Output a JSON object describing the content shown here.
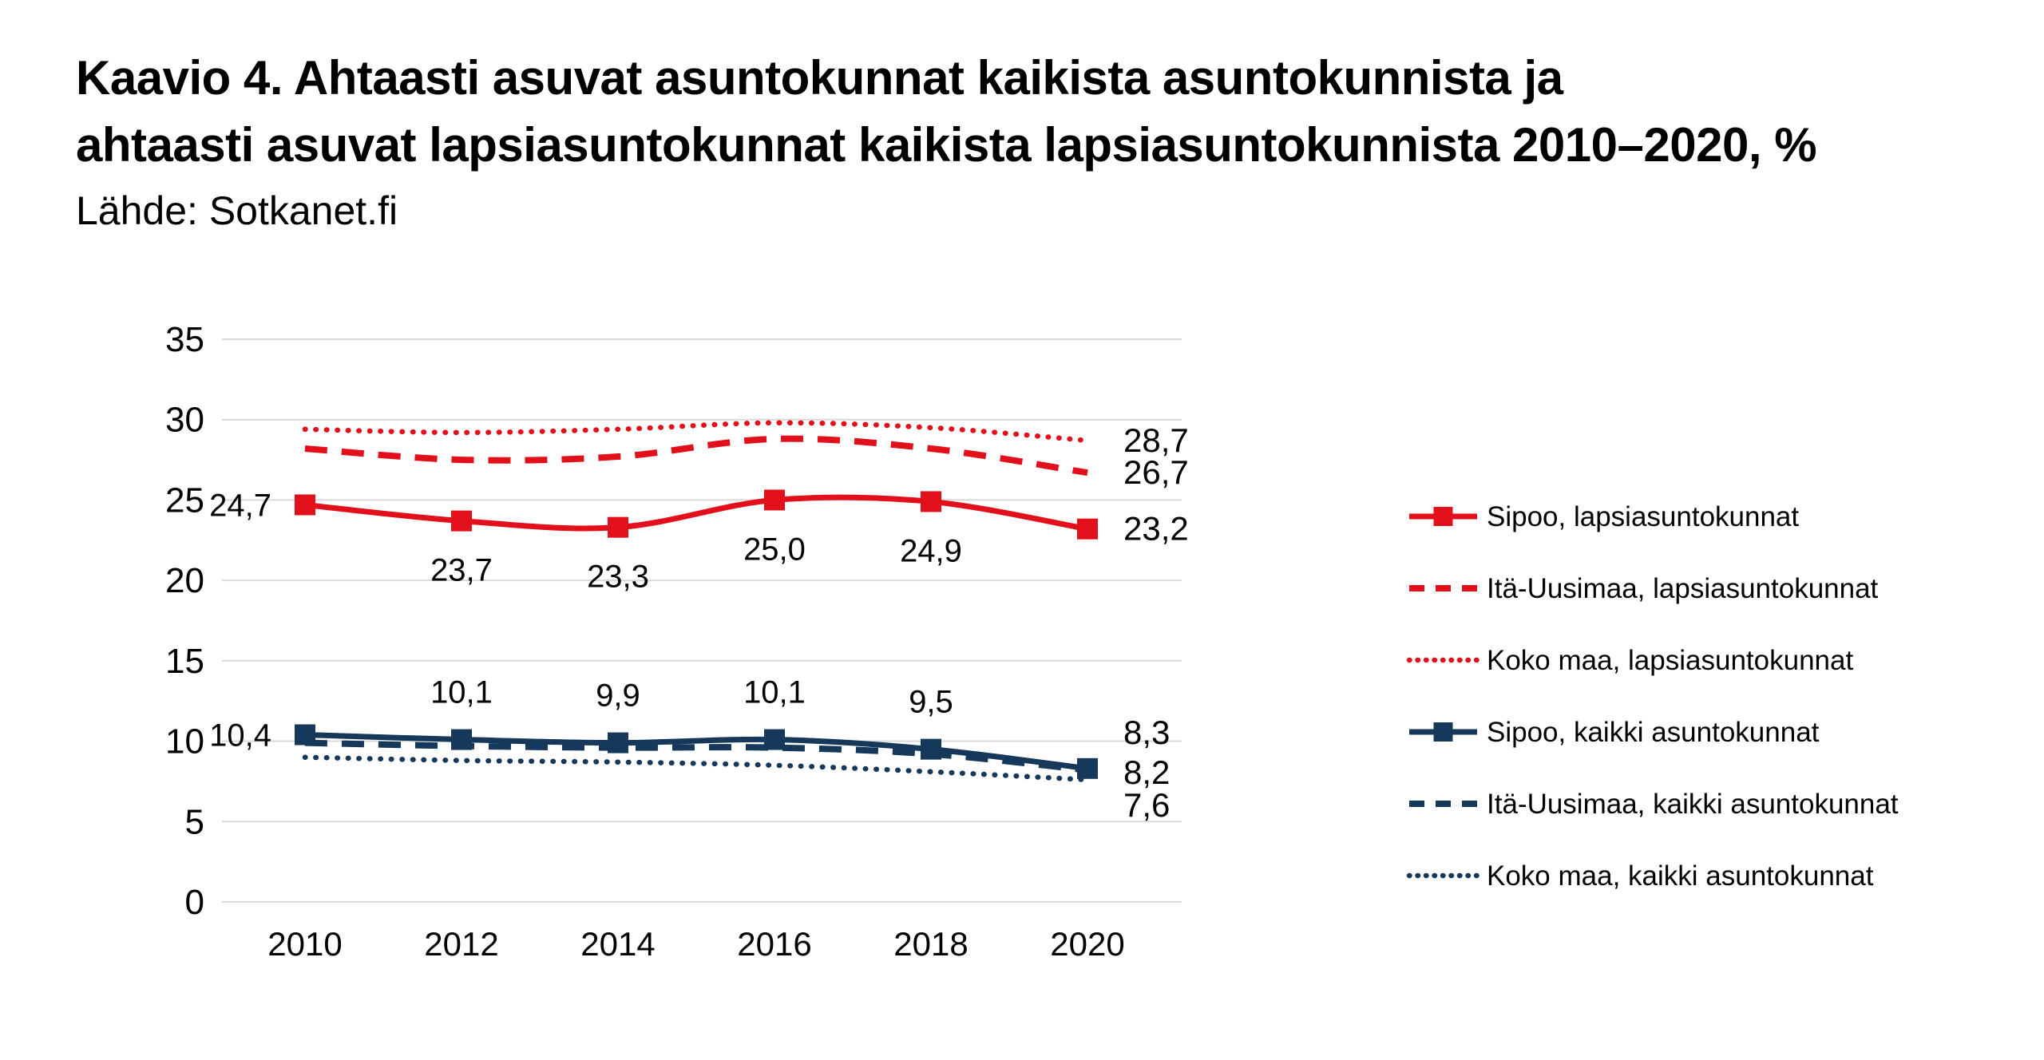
{
  "title": {
    "line1": "Kaavio 4. Ahtaasti asuvat asuntokunnat kaikista asuntokunnista ja",
    "line2": "ahtaasti asuvat lapsiasuntokunnat kaikista lapsiasuntokunnista 2010–2020, %",
    "source": "Lähde: Sotkanet.fi"
  },
  "colors": {
    "red": "#e1101a",
    "navy": "#16385a",
    "grid": "#d9d9d9",
    "text": "#000000"
  },
  "chart_data": {
    "type": "line",
    "title": "Kaavio 4. Ahtaasti asuvat asuntokunnat kaikista asuntokunnista ja ahtaasti asuvat lapsiasuntokunnat kaikista lapsiasuntokunnista 2010–2020, %",
    "source": "Lähde: Sotkanet.fi",
    "categories": [
      2010,
      2012,
      2014,
      2016,
      2018,
      2020
    ],
    "x_tick_labels": [
      "2010",
      "2012",
      "2014",
      "2016",
      "2018",
      "2020"
    ],
    "y_ticks": [
      0,
      5,
      10,
      15,
      20,
      25,
      30,
      35
    ],
    "y_tick_labels": [
      "0",
      "5",
      "10",
      "15",
      "20",
      "25",
      "30",
      "35"
    ],
    "ylim": [
      0,
      35
    ],
    "grid": "horizontal",
    "legend_position": "right",
    "series": [
      {
        "name": "Sipoo, lapsiasuntokunnat",
        "color": "red",
        "style": "solid",
        "marker": "square",
        "values": [
          24.7,
          23.7,
          23.3,
          25.0,
          24.9,
          23.2
        ],
        "point_labels": [
          {
            "text": "24,7",
            "pos": "left"
          },
          {
            "text": "23,7",
            "pos": "below"
          },
          {
            "text": "23,3",
            "pos": "below"
          },
          {
            "text": "25,0",
            "pos": "below"
          },
          {
            "text": "24,9",
            "pos": "below"
          },
          {
            "text": "23,2",
            "pos": "right"
          }
        ]
      },
      {
        "name": "Itä-Uusimaa, lapsiasuntokunnat",
        "color": "red",
        "style": "dashed",
        "marker": "none",
        "values": [
          28.2,
          27.5,
          27.7,
          28.8,
          28.2,
          26.7
        ],
        "end_label": {
          "text": "26,7",
          "dy": 0
        }
      },
      {
        "name": "Koko maa, lapsiasuntokunnat",
        "color": "red",
        "style": "dotted",
        "marker": "none",
        "values": [
          29.4,
          29.2,
          29.4,
          29.8,
          29.5,
          28.7
        ],
        "end_label": {
          "text": "28,7",
          "dy": 0
        }
      },
      {
        "name": "Sipoo, kaikki asuntokunnat",
        "color": "navy",
        "style": "solid",
        "marker": "square",
        "values": [
          10.4,
          10.1,
          9.9,
          10.1,
          9.5,
          8.3
        ],
        "point_labels": [
          {
            "text": "10,4",
            "pos": "left"
          },
          {
            "text": "10,1",
            "pos": "above"
          },
          {
            "text": "9,9",
            "pos": "above"
          },
          {
            "text": "10,1",
            "pos": "above"
          },
          {
            "text": "9,5",
            "pos": "above"
          },
          {
            "text": "8,3",
            "pos": "end",
            "dy": -45
          }
        ]
      },
      {
        "name": "Itä-Uusimaa, kaikki asuntokunnat",
        "color": "navy",
        "style": "dashed",
        "marker": "none",
        "values": [
          9.9,
          9.7,
          9.6,
          9.6,
          9.2,
          8.2
        ],
        "end_label": {
          "text": "8,2",
          "dy": 3
        }
      },
      {
        "name": "Koko maa, kaikki asuntokunnat",
        "color": "navy",
        "style": "dotted",
        "marker": "none",
        "values": [
          9.0,
          8.8,
          8.7,
          8.5,
          8.1,
          7.6
        ],
        "end_label": {
          "text": "7,6",
          "dy": 32
        }
      }
    ]
  }
}
